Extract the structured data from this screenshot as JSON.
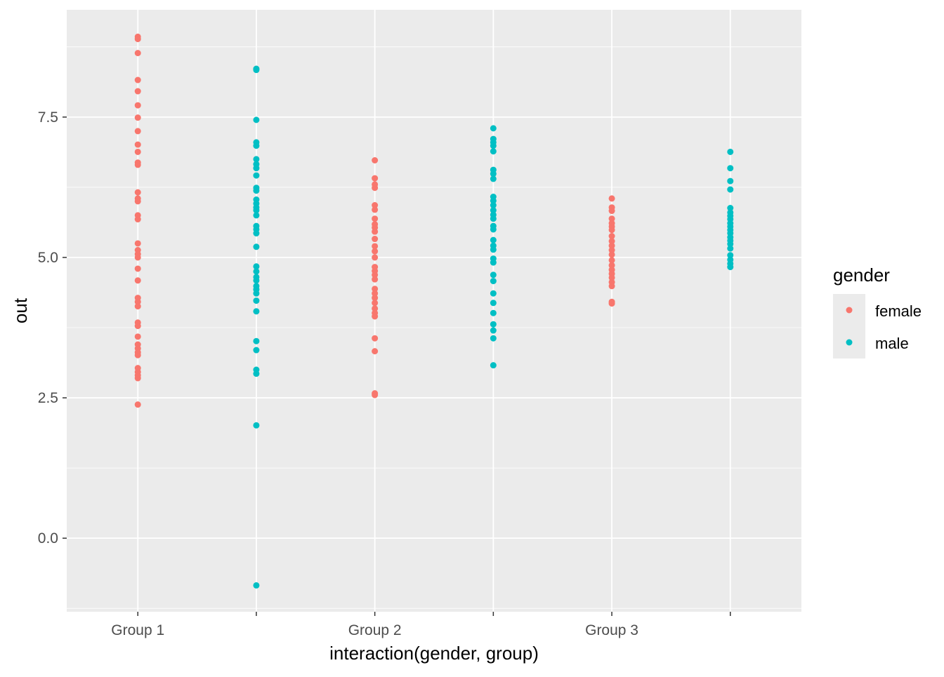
{
  "chart_data": {
    "type": "scatter",
    "title": "",
    "xlabel": "interaction(gender, group)",
    "ylabel": "out",
    "ylim": [
      -1.31,
      9.41
    ],
    "y_ticks": [
      0.0,
      2.5,
      5.0,
      7.5
    ],
    "y_tick_labels": [
      "0.0",
      "2.5",
      "5.0",
      "7.5"
    ],
    "y_minor_ticks": [
      -1.25,
      1.25,
      3.75,
      6.25,
      8.75
    ],
    "categories": [
      "female.Group 1",
      "male.Group 1",
      "female.Group 2",
      "male.Group 2",
      "female.Group 3",
      "male.Group 3"
    ],
    "x_tick_labels": [
      "Group 1",
      "",
      "Group 2",
      "",
      "Group 3",
      ""
    ],
    "grid": true,
    "legend": {
      "title": "gender",
      "placement": "right",
      "entries": [
        {
          "label": "female",
          "color": "#F8766D"
        },
        {
          "label": "male",
          "color": "#00BFC4"
        }
      ]
    },
    "series": [
      {
        "name": "female",
        "category": 0,
        "color": "#F8766D",
        "values": [
          8.93,
          8.89,
          8.64,
          8.16,
          7.96,
          7.71,
          7.49,
          7.25,
          7.01,
          6.88,
          6.69,
          6.65,
          6.16,
          6.05,
          6.0,
          5.75,
          5.68,
          5.25,
          5.13,
          5.06,
          5.0,
          4.8,
          4.59,
          4.28,
          4.21,
          4.13,
          3.84,
          3.78,
          3.59,
          3.45,
          3.38,
          3.31,
          3.26,
          3.03,
          2.96,
          2.9,
          2.85,
          2.38
        ]
      },
      {
        "name": "male",
        "category": 1,
        "color": "#00BFC4",
        "values": [
          8.36,
          8.34,
          7.45,
          7.05,
          6.99,
          6.75,
          6.66,
          6.59,
          6.46,
          6.24,
          6.19,
          6.03,
          5.96,
          5.89,
          5.84,
          5.75,
          5.56,
          5.5,
          5.43,
          5.19,
          4.84,
          4.75,
          4.65,
          4.59,
          4.49,
          4.43,
          4.36,
          4.23,
          4.04,
          3.51,
          3.35,
          3.0,
          2.93,
          2.01,
          -0.84
        ]
      },
      {
        "name": "female",
        "category": 2,
        "color": "#F8766D",
        "values": [
          6.73,
          6.41,
          6.3,
          6.24,
          5.93,
          5.85,
          5.69,
          5.59,
          5.53,
          5.46,
          5.33,
          5.2,
          5.11,
          5.0,
          4.83,
          4.76,
          4.69,
          4.61,
          4.44,
          4.36,
          4.28,
          4.19,
          4.09,
          4.01,
          3.95,
          3.56,
          3.33,
          2.58,
          2.55
        ]
      },
      {
        "name": "male",
        "category": 3,
        "color": "#00BFC4",
        "values": [
          7.3,
          7.11,
          7.05,
          6.99,
          6.89,
          6.56,
          6.49,
          6.4,
          6.08,
          6.01,
          5.93,
          5.84,
          5.76,
          5.69,
          5.56,
          5.5,
          5.31,
          5.21,
          5.14,
          4.98,
          4.91,
          4.69,
          4.58,
          4.36,
          4.19,
          4.01,
          3.81,
          3.7,
          3.56,
          3.08
        ]
      },
      {
        "name": "female",
        "category": 4,
        "color": "#F8766D",
        "values": [
          6.05,
          5.89,
          5.83,
          5.69,
          5.61,
          5.55,
          5.49,
          5.38,
          5.29,
          5.21,
          5.13,
          5.05,
          4.95,
          4.86,
          4.78,
          4.71,
          4.64,
          4.56,
          4.49,
          4.21,
          4.18
        ]
      },
      {
        "name": "male",
        "category": 5,
        "color": "#00BFC4",
        "values": [
          6.88,
          6.59,
          6.36,
          6.21,
          5.88,
          5.8,
          5.74,
          5.68,
          5.61,
          5.55,
          5.49,
          5.43,
          5.36,
          5.3,
          5.24,
          5.16,
          5.04,
          4.96,
          4.89,
          4.83
        ]
      }
    ]
  }
}
